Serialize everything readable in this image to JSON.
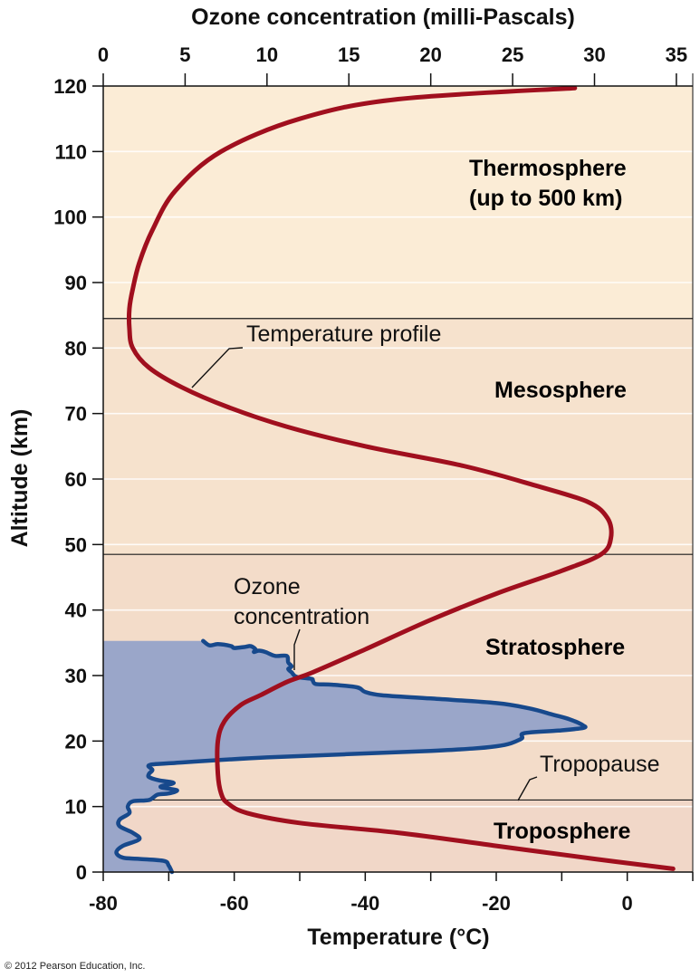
{
  "chart_data": {
    "type": "line",
    "xlabel_top": "Ozone concentration (milli-Pascals)",
    "xlabel_bottom": "Temperature (°C)",
    "ylabel": "Altitude (km)",
    "ylim": [
      0,
      120
    ],
    "xlim_top": [
      0,
      36
    ],
    "xlim_bottom": [
      -80,
      10
    ],
    "x_ticks_top": [
      0,
      5,
      10,
      15,
      20,
      25,
      30,
      35
    ],
    "x_ticks_bottom": [
      -80,
      -60,
      -40,
      -20,
      0
    ],
    "y_ticks": [
      0,
      10,
      20,
      30,
      40,
      50,
      60,
      70,
      80,
      90,
      100,
      110,
      120
    ],
    "grid": true,
    "layers": [
      {
        "name": "Troposphere",
        "range": [
          0,
          11
        ],
        "color": "#f1d7c8"
      },
      {
        "name": "Stratosphere",
        "range": [
          11,
          48.5
        ],
        "color": "#f3dcc9"
      },
      {
        "name": "Mesosphere",
        "range": [
          48.5,
          84.5
        ],
        "color": "#f6e2cd"
      },
      {
        "name": "Thermosphere",
        "range": [
          84.5,
          120
        ],
        "color": "#fbecd6"
      }
    ],
    "boundaries": [
      11,
      48.5,
      84.5
    ],
    "layer_labels": [
      {
        "text": "Thermosphere",
        "sub": "(up to 500 km)"
      },
      {
        "text": "Mesosphere"
      },
      {
        "text": "Stratosphere"
      },
      {
        "text": "Troposphere"
      }
    ],
    "annotations": {
      "temperature_profile": "Temperature profile",
      "ozone_line1": "Ozone",
      "ozone_line2": "concentration",
      "tropopause": "Tropopause"
    },
    "series": [
      {
        "name": "Temperature profile",
        "axis": "bottom",
        "color": "#a00f1e",
        "points": [
          [
            7,
            0.5
          ],
          [
            -5,
            2
          ],
          [
            -20,
            4
          ],
          [
            -35,
            6
          ],
          [
            -50,
            7.5
          ],
          [
            -58,
            9
          ],
          [
            -61,
            10.5
          ],
          [
            -62,
            12
          ],
          [
            -62.5,
            15
          ],
          [
            -62.5,
            20
          ],
          [
            -61.5,
            23
          ],
          [
            -59,
            25.5
          ],
          [
            -56,
            27
          ],
          [
            -52,
            29
          ],
          [
            -48,
            30.5
          ],
          [
            -40,
            34
          ],
          [
            -30,
            38.5
          ],
          [
            -20,
            42.5
          ],
          [
            -10,
            46
          ],
          [
            -4,
            48.5
          ],
          [
            -2.5,
            51
          ],
          [
            -3,
            54
          ],
          [
            -6,
            56.5
          ],
          [
            -14,
            59
          ],
          [
            -25,
            62
          ],
          [
            -40,
            65
          ],
          [
            -52,
            68
          ],
          [
            -61,
            71
          ],
          [
            -68,
            74
          ],
          [
            -73,
            77
          ],
          [
            -75.5,
            80
          ],
          [
            -76,
            83
          ],
          [
            -76,
            86
          ],
          [
            -75.5,
            89
          ],
          [
            -74.5,
            93
          ],
          [
            -72.5,
            98
          ],
          [
            -69,
            104
          ],
          [
            -62,
            110
          ],
          [
            -50,
            115
          ],
          [
            -35,
            118
          ],
          [
            -8,
            119.7
          ]
        ]
      },
      {
        "name": "Ozone concentration",
        "axis": "top",
        "color": "#17498c",
        "fill": "#9aa6c9",
        "points": [
          [
            4.2,
            0
          ],
          [
            4,
            1
          ],
          [
            3.7,
            1.7
          ],
          [
            2.2,
            2
          ],
          [
            1.2,
            2.2
          ],
          [
            0.8,
            3
          ],
          [
            1.2,
            4
          ],
          [
            2.2,
            5
          ],
          [
            1.8,
            6
          ],
          [
            1,
            7
          ],
          [
            1,
            8
          ],
          [
            1.6,
            9
          ],
          [
            1.5,
            10
          ],
          [
            1.8,
            10.8
          ],
          [
            2.8,
            11
          ],
          [
            3.3,
            11.8
          ],
          [
            4,
            12
          ],
          [
            4.5,
            12.5
          ],
          [
            3.5,
            13
          ],
          [
            4.3,
            13.6
          ],
          [
            3.4,
            14
          ],
          [
            2.8,
            14.5
          ],
          [
            2.8,
            15
          ],
          [
            3,
            15.6
          ],
          [
            2.8,
            16.3
          ],
          [
            4,
            16.6
          ],
          [
            10,
            17.5
          ],
          [
            20,
            18.5
          ],
          [
            24,
            19.2
          ],
          [
            25.5,
            20.3
          ],
          [
            25.7,
            21.2
          ],
          [
            27.8,
            21.6
          ],
          [
            29.3,
            22
          ],
          [
            29.3,
            22.4
          ],
          [
            28.5,
            23.3
          ],
          [
            27.5,
            24
          ],
          [
            26,
            25
          ],
          [
            24,
            25.8
          ],
          [
            20,
            26.5
          ],
          [
            17,
            27
          ],
          [
            16,
            27.5
          ],
          [
            15.5,
            28.2
          ],
          [
            14,
            28.6
          ],
          [
            13,
            28.7
          ],
          [
            12.8,
            29.2
          ],
          [
            12.7,
            29.5
          ],
          [
            11.8,
            29.8
          ],
          [
            11.5,
            30.5
          ],
          [
            11.3,
            31
          ],
          [
            11.5,
            31.4
          ],
          [
            11.3,
            32
          ],
          [
            11.2,
            33
          ],
          [
            10.5,
            33
          ],
          [
            9.9,
            33.6
          ],
          [
            9.5,
            33.8
          ],
          [
            9.2,
            33.6
          ],
          [
            9.3,
            34
          ],
          [
            9,
            34.5
          ],
          [
            8.7,
            34.4
          ],
          [
            8,
            34.2
          ],
          [
            7.8,
            34.5
          ],
          [
            7,
            34.8
          ],
          [
            6.5,
            34.6
          ],
          [
            6.1,
            35.3
          ]
        ]
      }
    ]
  },
  "copyright": "© 2012 Pearson Education, Inc."
}
